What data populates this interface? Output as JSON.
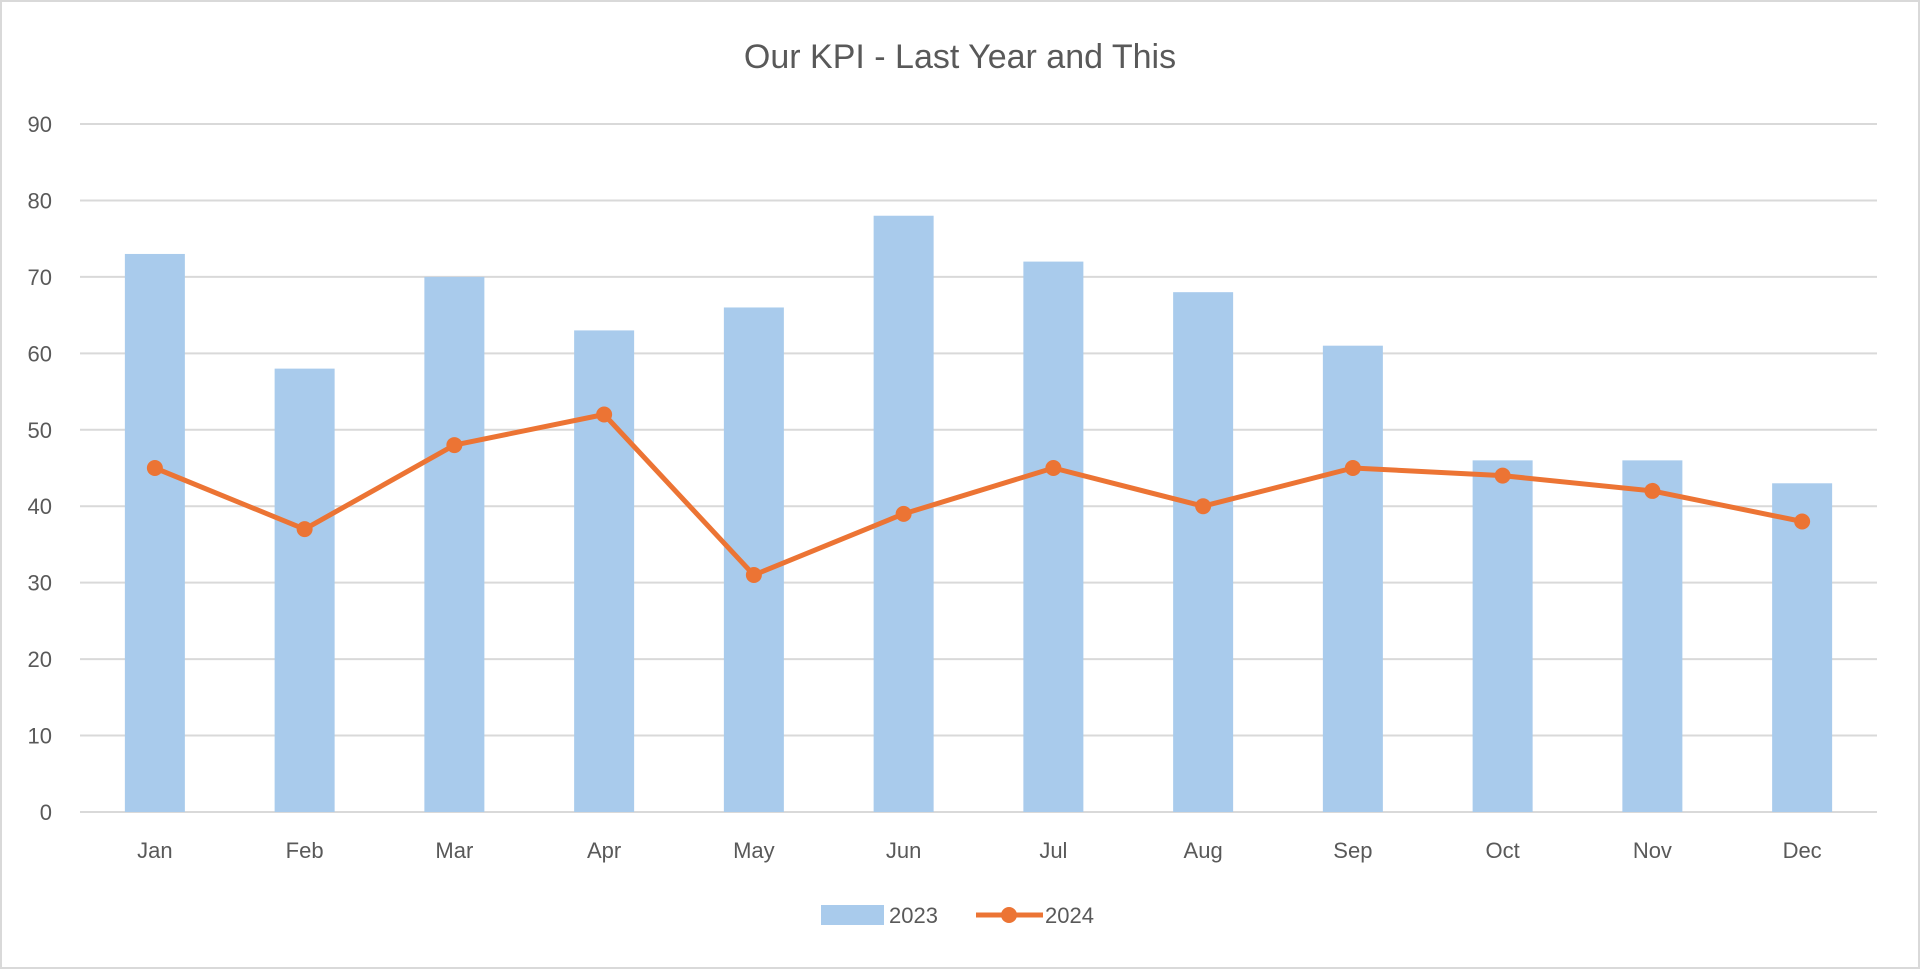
{
  "chart_data": {
    "type": "bar+line",
    "title": "Our KPI - Last Year and This",
    "xlabel": "",
    "ylabel": "",
    "categories": [
      "Jan",
      "Feb",
      "Mar",
      "Apr",
      "May",
      "Jun",
      "Jul",
      "Aug",
      "Sep",
      "Oct",
      "Nov",
      "Dec"
    ],
    "series": [
      {
        "name": "2023",
        "type": "bar",
        "color": "#A9CBEC",
        "values": [
          73,
          58,
          70,
          63,
          66,
          78,
          72,
          68,
          61,
          46,
          46,
          43
        ]
      },
      {
        "name": "2024",
        "type": "line",
        "color": "#EC7434",
        "values": [
          45,
          37,
          48,
          52,
          31,
          39,
          45,
          40,
          45,
          44,
          42,
          38
        ]
      }
    ],
    "ylim": [
      0,
      90
    ],
    "yticks": [
      "0",
      "10",
      "20",
      "30",
      "40",
      "50",
      "60",
      "70",
      "80",
      "90"
    ],
    "grid": true,
    "legend_position": "bottom"
  }
}
